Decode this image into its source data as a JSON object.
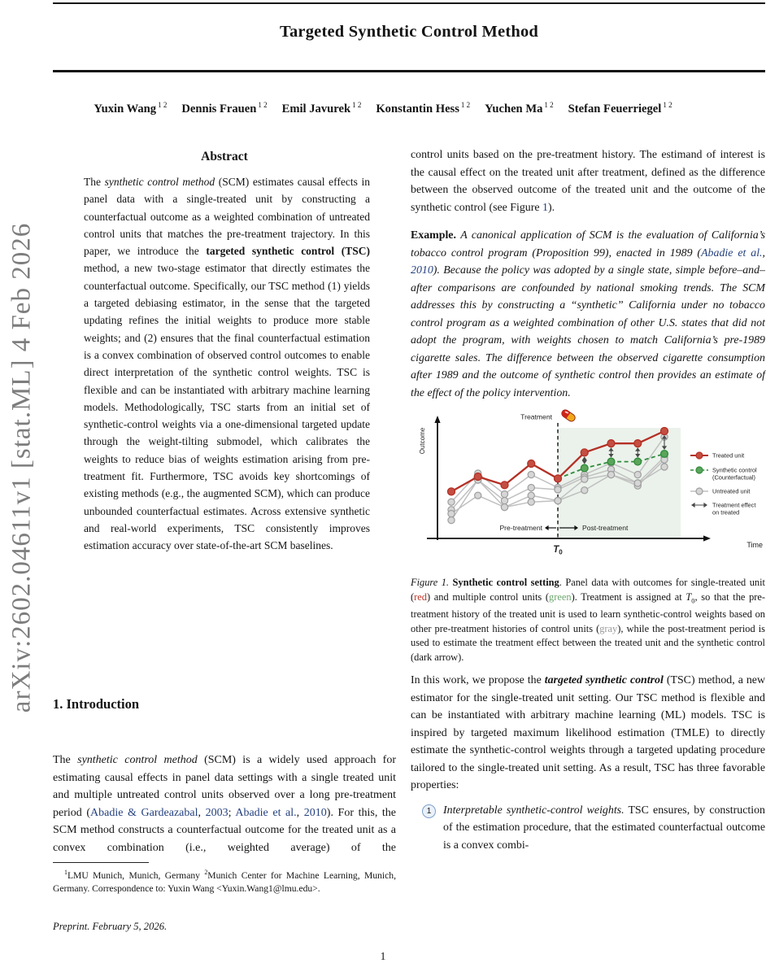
{
  "page": {
    "arxiv_sidebar": "arXiv:2602.04611v1  [stat.ML]  4 Feb 2026",
    "page_number": "1"
  },
  "header": {
    "title": "Targeted Synthetic Control Method",
    "authors": [
      {
        "name": "Yuxin Wang",
        "sup": "1 2"
      },
      {
        "name": "Dennis Frauen",
        "sup": "1 2"
      },
      {
        "name": "Emil Javurek",
        "sup": "1 2"
      },
      {
        "name": "Konstantin Hess",
        "sup": "1 2"
      },
      {
        "name": "Yuchen Ma",
        "sup": "1 2"
      },
      {
        "name": "Stefan Feuerriegel",
        "sup": "1 2"
      }
    ]
  },
  "abstract": {
    "heading": "Abstract",
    "runs": [
      {
        "t": "The ",
        "s": "n"
      },
      {
        "t": "synthetic control method",
        "s": "i"
      },
      {
        "t": " (SCM) estimates causal effects in panel data with a single-treated unit by constructing a counterfactual outcome as a weighted combination of untreated control units that matches the pre-treatment trajectory. In this paper, we introduce the ",
        "s": "n"
      },
      {
        "t": "targeted synthetic control (TSC)",
        "s": "b"
      },
      {
        "t": " method, a new two-stage estimator that directly estimates the counterfactual outcome. Specifically, our TSC method (1) yields a targeted debiasing estimator, in the sense that the targeted updating refines the initial weights to produce more stable weights; and (2) ensures that the final counterfactual estimation is a convex combination of observed control outcomes to enable direct interpretation of the synthetic control weights. TSC is flexible and can be instantiated with arbitrary machine learning models. Methodologically, TSC starts from an initial set of synthetic-control weights via a one-dimensional targeted update through the weight-tilting submodel, which calibrates the weights to reduce bias of weights estimation arising from pre-treatment fit. Furthermore, TSC avoids key shortcomings of existing methods (e.g., the augmented SCM), which can produce unbounded counterfactual estimates. Across extensive synthetic and real-world experiments, TSC consistently improves estimation accuracy over state-of-the-art SCM baselines.",
        "s": "n"
      }
    ]
  },
  "intro": {
    "heading": "1. Introduction",
    "runs": [
      {
        "t": "The ",
        "s": "n"
      },
      {
        "t": "synthetic control method",
        "s": "i"
      },
      {
        "t": " (SCM) is a widely used approach for estimating causal effects in panel data settings with a single treated unit and multiple untreated control units observed over a long pre-treatment period (",
        "s": "n"
      },
      {
        "t": "Abadie & Gardeazabal",
        "s": "a"
      },
      {
        "t": ", ",
        "s": "n"
      },
      {
        "t": "2003",
        "s": "a"
      },
      {
        "t": "; ",
        "s": "n"
      },
      {
        "t": "Abadie et al.",
        "s": "a"
      },
      {
        "t": ", ",
        "s": "n"
      },
      {
        "t": "2010",
        "s": "a"
      },
      {
        "t": "). For this, the SCM method constructs a counterfactual outcome for the treated unit as a convex combination (i.e., weighted average) of the",
        "s": "n"
      }
    ]
  },
  "footnote": {
    "runs": [
      {
        "t": "1",
        "s": "sup"
      },
      {
        "t": "LMU Munich, Munich, Germany ",
        "s": "n"
      },
      {
        "t": "2",
        "s": "sup"
      },
      {
        "t": "Munich Center for Machine Learning, Munich, Germany.  Correspondence to: Yuxin Wang <Yuxin.Wang1@lmu.edu>.",
        "s": "n"
      }
    ]
  },
  "preprint_note": "Preprint. February 5, 2026.",
  "right_column": {
    "para1_runs": [
      {
        "t": "control units based on the pre-treatment history.  The estimand of interest is the causal effect on the treated unit after treatment, defined as the difference between the observed outcome of the treated unit and the outcome of the synthetic control (see Figure ",
        "s": "n"
      },
      {
        "t": "1",
        "s": "a"
      },
      {
        "t": ").",
        "s": "n"
      }
    ],
    "example_runs": [
      {
        "t": "Example.",
        "s": "b"
      },
      {
        "t": " ",
        "s": "n"
      },
      {
        "t": "A canonical application of SCM is the evaluation of California’s tobacco control program (Proposition 99), enacted in 1989 (",
        "s": "i"
      },
      {
        "t": "Abadie et al.",
        "s": "ai"
      },
      {
        "t": ", ",
        "s": "i"
      },
      {
        "t": "2010",
        "s": "ai"
      },
      {
        "t": "). Because the policy was adopted by a single state, simple before–and–after comparisons are confounded by national smoking trends. The SCM addresses this by constructing a “synthetic” California under no tobacco control program as a weighted combination of other U.S. states that did not adopt the program, with weights chosen to match California’s pre-1989 cigarette sales. The difference between the observed cigarette consumption after 1989 and the outcome of synthetic control then provides an estimate of the effect of the policy intervention.",
        "s": "i"
      }
    ],
    "para2_runs": [
      {
        "t": "In this work, we propose the ",
        "s": "n"
      },
      {
        "t": "targeted synthetic control",
        "s": "bi"
      },
      {
        "t": " (TSC) method, a new estimator for the single-treated unit setting. Our TSC method is flexible and can be instantiated with arbitrary machine learning (ML) models.  TSC is inspired by targeted maximum likelihood estimation (TMLE) to directly estimate the synthetic-control weights through a targeted updating procedure tailored to the single-treated unit setting. As a result, TSC has three favorable properties:",
        "s": "n"
      }
    ],
    "list_item": {
      "num": "1",
      "runs": [
        {
          "t": "Interpretable synthetic-control weights.",
          "s": "i"
        },
        {
          "t": " TSC ensures, by construction of the estimation procedure, that the estimated counterfactual outcome is a convex combi-",
          "s": "n"
        }
      ]
    }
  },
  "figure": {
    "caption_runs": [
      {
        "t": "Figure 1.",
        "s": "i"
      },
      {
        "t": " ",
        "s": "n"
      },
      {
        "t": "Synthetic control setting",
        "s": "b"
      },
      {
        "t": ".  Panel data with outcomes for single-treated unit (",
        "s": "n"
      },
      {
        "t": "red",
        "s": "red"
      },
      {
        "t": ") and multiple control units (",
        "s": "n"
      },
      {
        "t": "green",
        "s": "green"
      },
      {
        "t": "). Treatment is assigned at ",
        "s": "n"
      },
      {
        "t": "T",
        "s": "i"
      },
      {
        "t": "0",
        "s": "sub"
      },
      {
        "t": ", so that the pre-treatment history of the treated unit is used to learn synthetic-control weights based on other pre-treatment histories of control units (",
        "s": "n"
      },
      {
        "t": "gray",
        "s": "gray"
      },
      {
        "t": "), while the post-treatment period is used to estimate the treatment effect between the treated unit and the synthetic control (dark arrow).",
        "s": "n"
      }
    ]
  },
  "chart_data": {
    "type": "line",
    "title": "",
    "xlabel": "Time",
    "ylabel": "Outcome",
    "t0_label": "T0",
    "t0_x": 5,
    "treatment_label": "Treatment",
    "pre_label": "Pre-treatment",
    "post_label": "Post-treatment",
    "x": [
      1,
      2,
      3,
      4,
      5,
      6,
      7,
      8,
      9
    ],
    "grid": false,
    "legend_position": "right",
    "series": [
      {
        "name": "Treated unit",
        "role": "treated",
        "values": [
          3.6,
          4.75,
          4.1,
          5.75,
          4.6,
          6.6,
          7.3,
          7.3,
          8.25
        ]
      },
      {
        "name": "Synthetic control (Counterfactual)",
        "role": "synthetic",
        "values": [
          null,
          null,
          null,
          null,
          4.6,
          5.4,
          5.9,
          5.9,
          6.5
        ]
      },
      {
        "name": "Untreated unit",
        "role": "untreated",
        "values": [
          2.8,
          5.0,
          3.4,
          4.9,
          3.9,
          4.9,
          5.8,
          4.9,
          7.8
        ]
      },
      {
        "name": "Untreated unit",
        "role": "untreated",
        "values": [
          2.2,
          4.5,
          2.9,
          3.9,
          3.75,
          4.7,
          5.3,
          4.25,
          6.25
        ]
      },
      {
        "name": "Untreated unit",
        "role": "untreated",
        "values": [
          1.9,
          3.3,
          2.4,
          3.3,
          2.9,
          4.55,
          4.9,
          4.05,
          6.05
        ]
      },
      {
        "name": "Untreated unit",
        "role": "untreated",
        "values": [
          1.4,
          4.5,
          2.4,
          2.8,
          2.9,
          3.7,
          4.9,
          4.25,
          5.5
        ]
      }
    ],
    "effect_arrow_x": [
      6,
      7,
      8,
      9
    ],
    "legend": [
      {
        "label": "Treated unit",
        "marker": "treated"
      },
      {
        "label": "Synthetic control\n(Counterfactual)",
        "marker": "synthetic"
      },
      {
        "label": "Untreated unit",
        "marker": "untreated"
      },
      {
        "label": "Treatment effect\non treated",
        "marker": "effect"
      }
    ],
    "colors": {
      "treated": "#b43025",
      "treated_fill": "#c44e42",
      "synthetic": "#2e8b3a",
      "synthetic_fill": "#5aa55a",
      "untreated": "#9e9e9e",
      "untreated_line": "#c0c0c0",
      "untreated_fill": "#d6d6d6",
      "effect_arrow": "#4a4a4a",
      "shade": "#ebf2eb",
      "axis": "#111111",
      "pill_red": "#cc2518",
      "pill_yellow": "#f0a818"
    }
  }
}
